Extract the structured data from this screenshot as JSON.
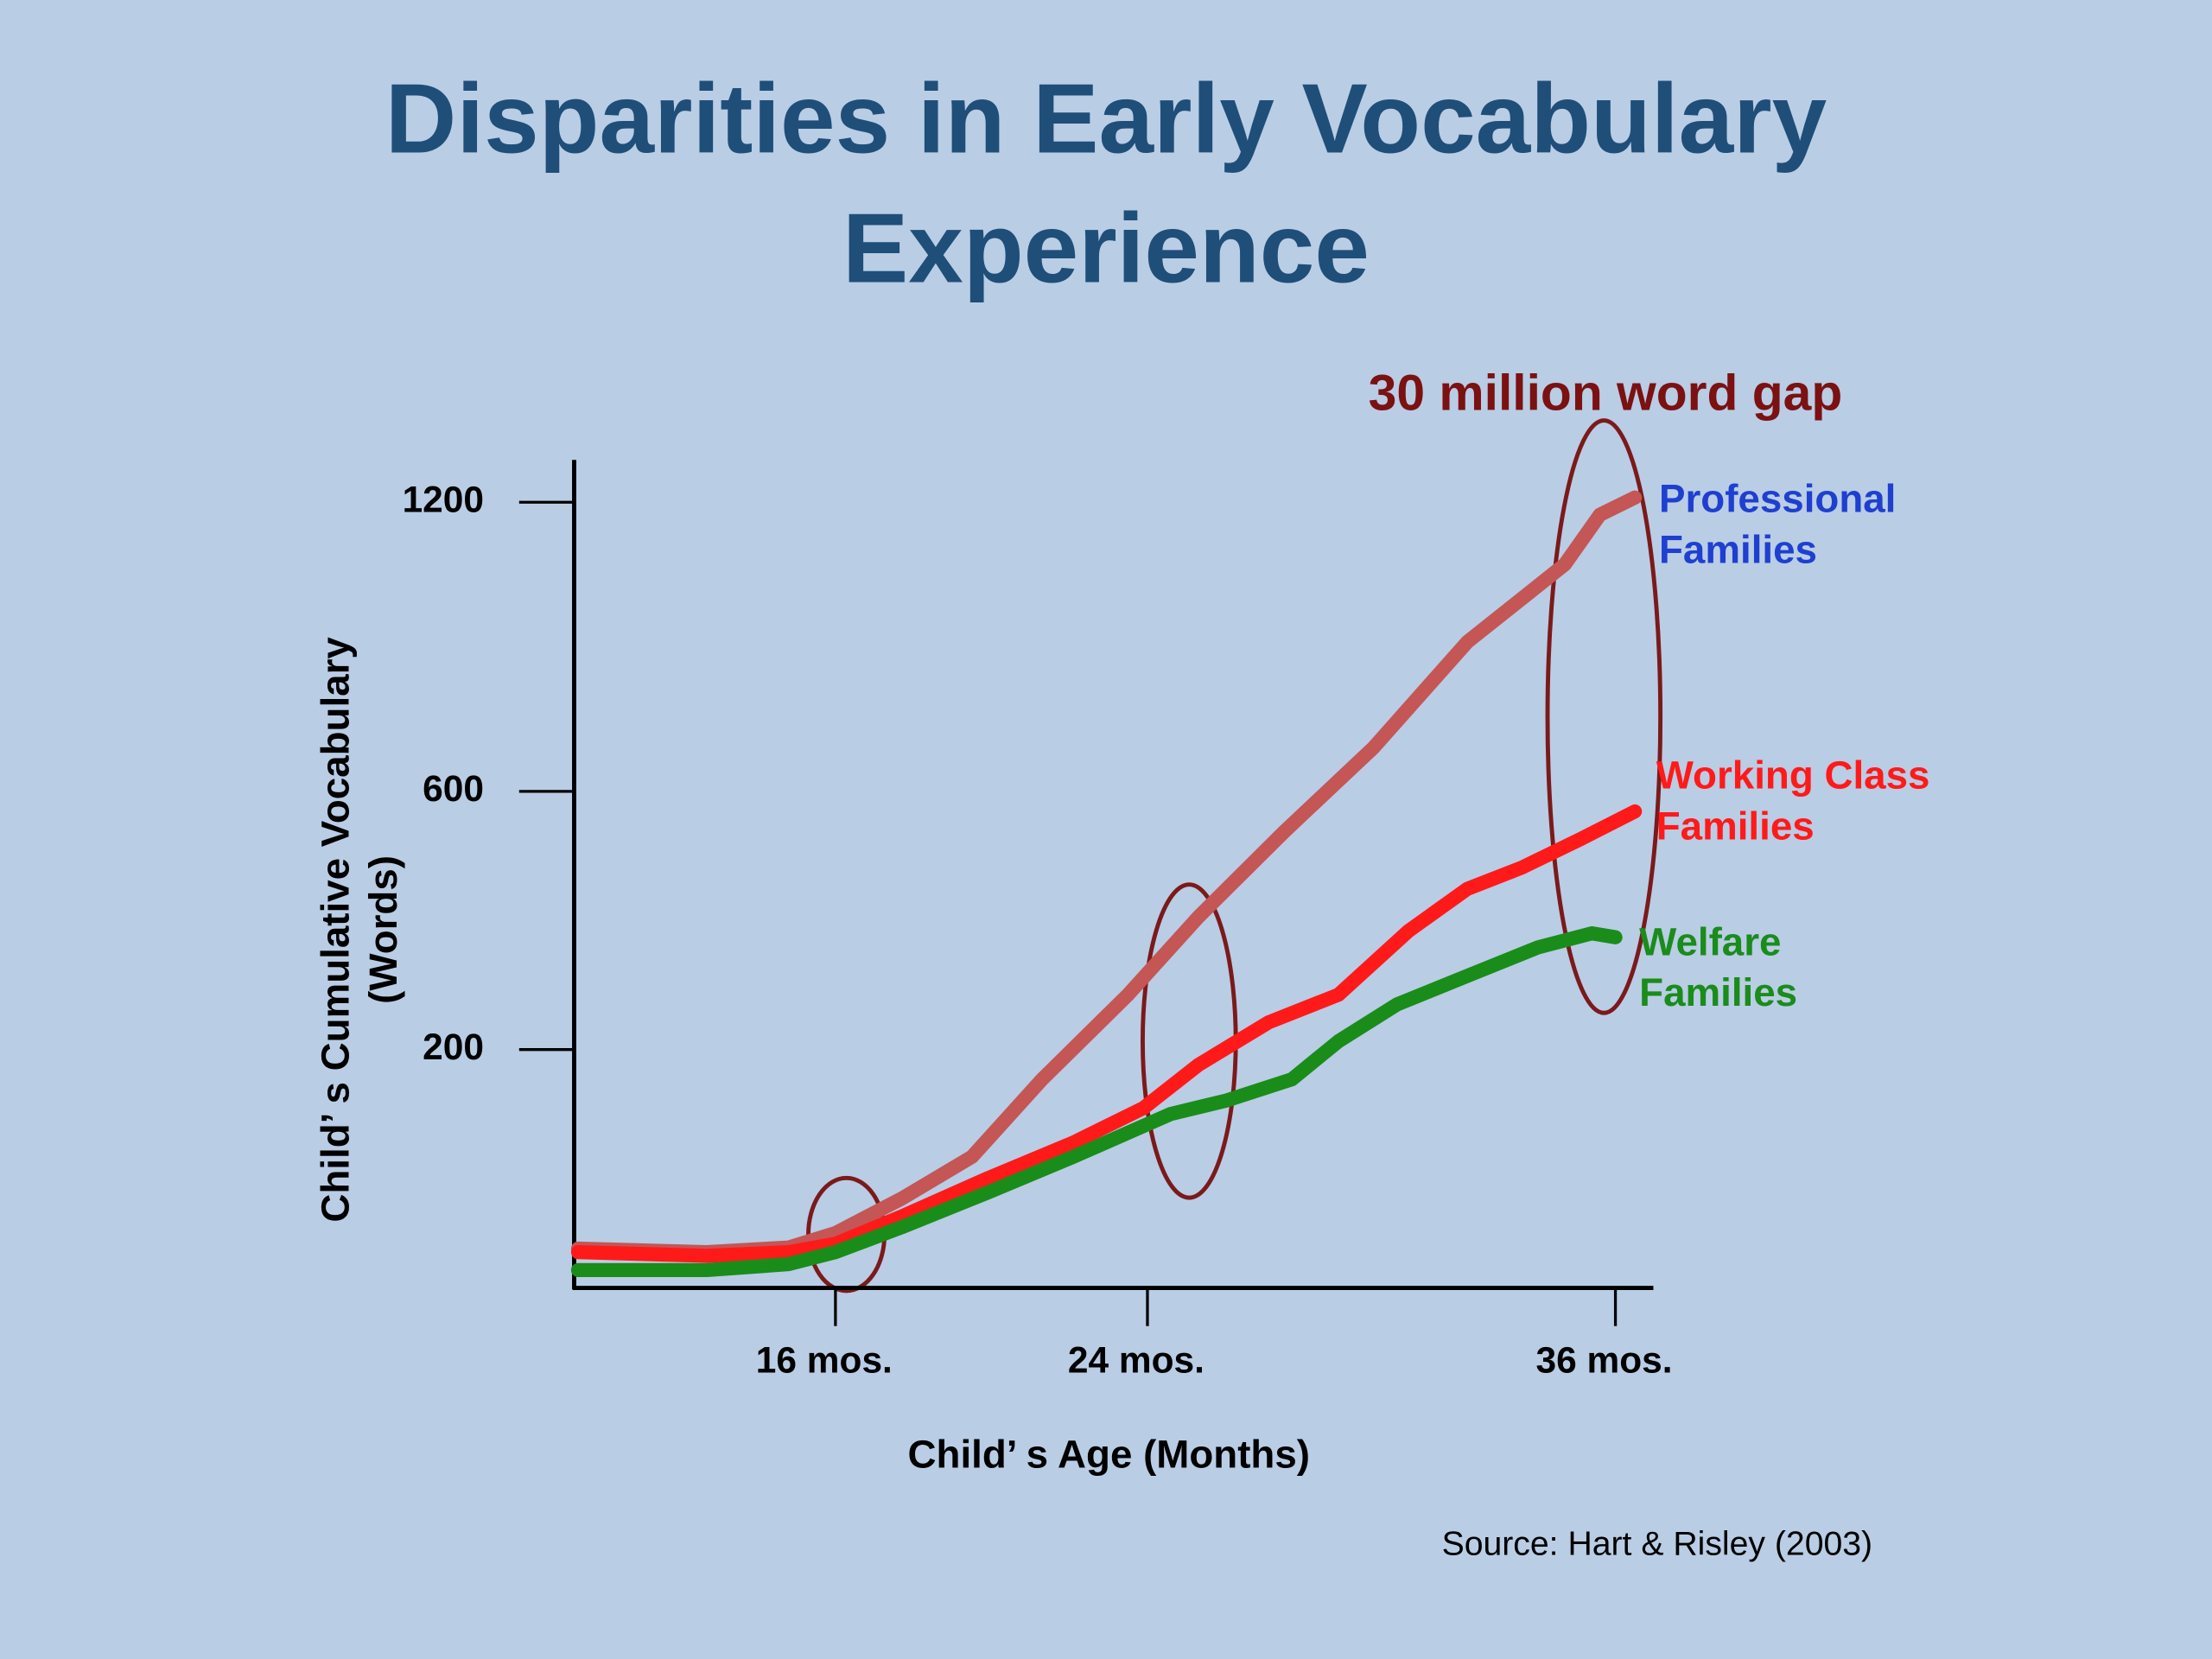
{
  "chart_data": {
    "type": "line",
    "title": "Disparities in Early Vocabulary Experience",
    "xlabel": "Child’ s Age (Months)",
    "ylabel": "Child’ s Cumulative Vocabulary (Words)",
    "annotation": "30 million word gap",
    "source": "Source: Hart & Risley (2003)",
    "xlim": [
      9.3,
      36.9
    ],
    "xticks": [
      {
        "value": 16,
        "label": "16 mos."
      },
      {
        "value": 24,
        "label": "24 mos."
      },
      {
        "value": 36,
        "label": "36 mos."
      }
    ],
    "ylim": [
      0,
      1290
    ],
    "yticks": [
      200,
      600,
      1200
    ],
    "series": [
      {
        "name": "Professional Families",
        "color": "#c45656",
        "label_color": "#1f3fd0",
        "x": [
          9.4,
          12.7,
          14.8,
          16,
          17.7,
          19.5,
          21.3,
          23.5,
          25.3,
          27.5,
          29.8,
          32.2,
          34.7,
          35.6,
          36.5
        ],
        "values": [
          33,
          30,
          34,
          46,
          75,
          110,
          175,
          285,
          405,
          537,
          691,
          910,
          1071,
          1174,
          1210
        ]
      },
      {
        "name": "Working Class Families",
        "color": "#ff1a1a",
        "label_color": "#ff1a1a",
        "x": [
          9.4,
          12.7,
          14.8,
          16,
          17.7,
          19.9,
          22.1,
          23.9,
          25.3,
          27.1,
          28.9,
          30.7,
          32.2,
          33.6,
          35.1,
          36.5
        ],
        "values": [
          30,
          27,
          30,
          37,
          60,
          92,
          122,
          151,
          187,
          242,
          285,
          384,
          449,
          482,
          526,
          569
        ]
      },
      {
        "name": "Welfare Families",
        "color": "#1a8c1a",
        "label_color": "#1a8c1a",
        "x": [
          9.4,
          12.7,
          14.8,
          16,
          17.7,
          19.9,
          22.1,
          24.6,
          26,
          27.7,
          28.9,
          30.4,
          32.2,
          34,
          35.4,
          36
        ],
        "values": [
          15,
          15,
          20,
          30,
          51,
          80,
          110,
          146,
          157,
          175,
          213,
          270,
          314,
          358,
          380,
          374
        ]
      }
    ]
  }
}
